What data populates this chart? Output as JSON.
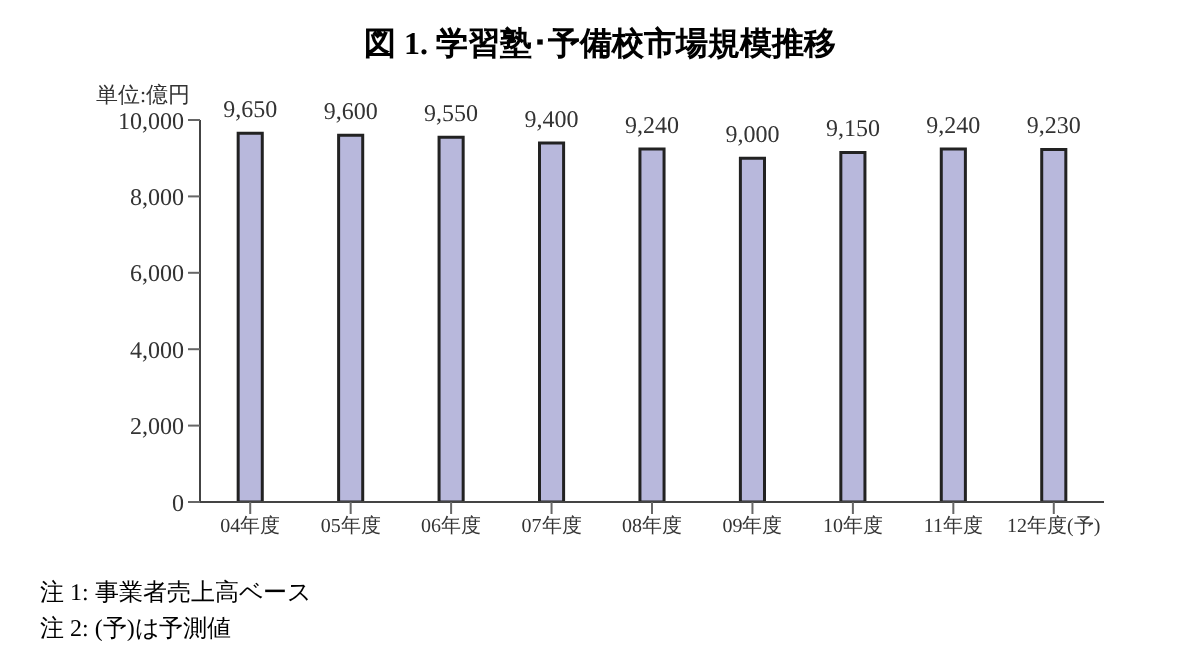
{
  "chart_data": {
    "type": "bar",
    "title": "図 1.  学習塾･予備校市場規模推移",
    "ylabel": "単位:億円",
    "categories": [
      "04年度",
      "05年度",
      "06年度",
      "07年度",
      "08年度",
      "09年度",
      "10年度",
      "11年度",
      "12年度(予)"
    ],
    "values": [
      9650,
      9600,
      9550,
      9400,
      9240,
      9000,
      9150,
      9240,
      9230
    ],
    "value_labels": [
      "9,650",
      "9,600",
      "9,550",
      "9,400",
      "9,240",
      "9,000",
      "9,150",
      "9,240",
      "9,230"
    ],
    "color": "#b8b8dc",
    "ylim": [
      0,
      10000
    ],
    "yticks": [
      0,
      {
        "value": 2000,
        "label": "2,000"
      },
      {
        "value": 4000,
        "label": "4,000"
      },
      {
        "value": 6000,
        "label": "6,000"
      },
      {
        "value": 8000,
        "label": "8,000"
      },
      {
        "value": 10000,
        "label": "10,000"
      }
    ],
    "grid": false,
    "annotations": [
      "注 1:  事業者売上高ベース",
      "注 2:  (予)は予測値"
    ]
  }
}
